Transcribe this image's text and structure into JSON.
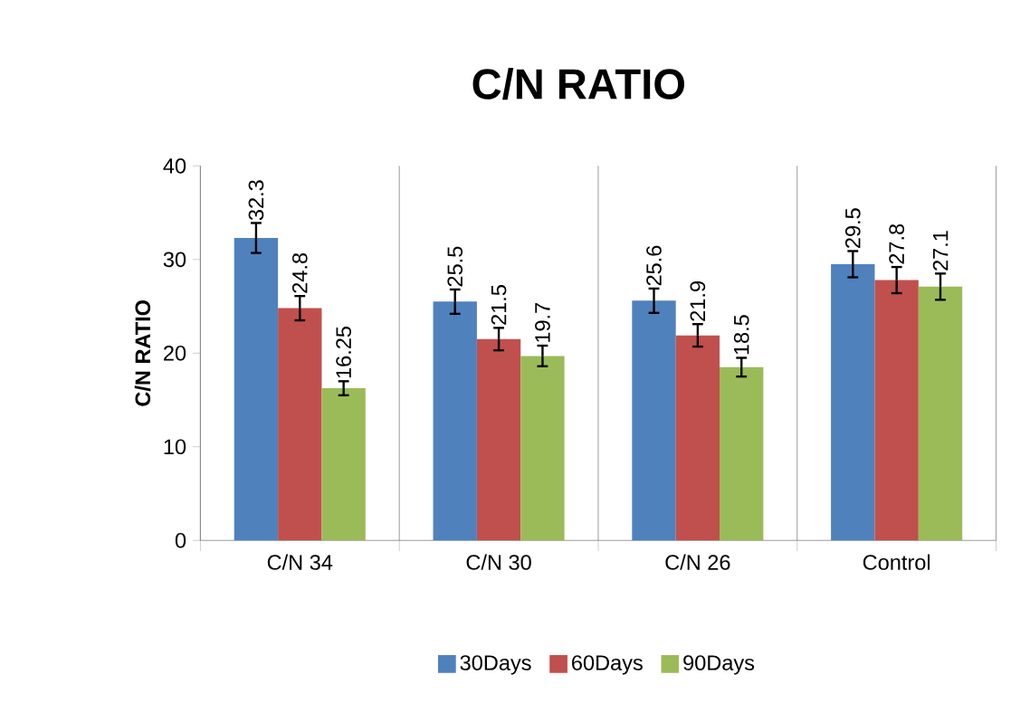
{
  "chart_data": {
    "type": "bar",
    "title": "C/N RATIO",
    "ylabel": "C/N RATIO",
    "categories": [
      "C/N 34",
      "C/N 30",
      "C/N 26",
      "Control"
    ],
    "series": [
      {
        "name": "30Days",
        "color": "#4f81bd",
        "values": [
          32.3,
          25.5,
          25.6,
          29.5
        ],
        "errors": [
          1.6,
          1.3,
          1.3,
          1.4
        ]
      },
      {
        "name": "60Days",
        "color": "#c0504d",
        "values": [
          24.8,
          21.5,
          21.9,
          27.8
        ],
        "errors": [
          1.3,
          1.2,
          1.2,
          1.4
        ]
      },
      {
        "name": "90Days",
        "color": "#9bbb59",
        "values": [
          16.25,
          19.7,
          18.5,
          27.1
        ],
        "errors": [
          0.75,
          1.1,
          1.0,
          1.4
        ]
      }
    ],
    "ylim": [
      0,
      40
    ],
    "yticks": [
      0,
      10,
      20,
      30,
      40
    ],
    "grid": "x",
    "legend": "bottom",
    "data_labels": true
  }
}
